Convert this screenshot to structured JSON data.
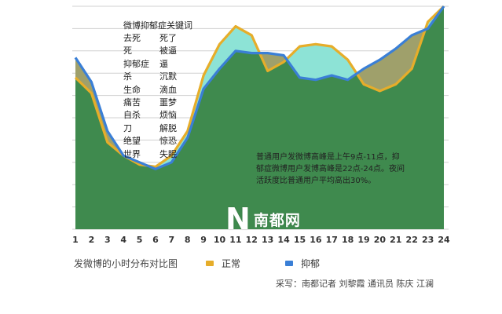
{
  "chart_data": {
    "type": "area",
    "title": "发微博的小时分布对比图",
    "x": [
      1,
      2,
      3,
      4,
      5,
      6,
      7,
      8,
      9,
      10,
      11,
      12,
      13,
      14,
      15,
      16,
      17,
      18,
      19,
      20,
      21,
      22,
      23,
      24
    ],
    "series": [
      {
        "name": "正常",
        "color": "#e6ad2a",
        "values": [
          68,
          61,
          39,
          33,
          29,
          28,
          33,
          44,
          69,
          83,
          91,
          87,
          71,
          75,
          82,
          83,
          82,
          76,
          65,
          62,
          65,
          72,
          93,
          100
        ]
      },
      {
        "name": "抑郁",
        "color": "#3a7fd6",
        "values": [
          77,
          66,
          44,
          33,
          30,
          27,
          30,
          41,
          63,
          72,
          80,
          79,
          79,
          78,
          68,
          67,
          69,
          67,
          72,
          76,
          81,
          87,
          90,
          100
        ]
      }
    ],
    "ylim": [
      0,
      100
    ],
    "grid": true,
    "legend": "bottom"
  },
  "keywords": {
    "title": "微博抑郁症关键词",
    "items": [
      [
        "去死",
        "死了"
      ],
      [
        "死",
        "被逼"
      ],
      [
        "抑郁症",
        "逼"
      ],
      [
        "杀",
        "沉默"
      ],
      [
        "生命",
        "滴血"
      ],
      [
        "痛苦",
        "噩梦"
      ],
      [
        "自杀",
        "烦恼"
      ],
      [
        "刀",
        "解脱"
      ],
      [
        "绝望",
        "惊恐"
      ],
      [
        "世界",
        "失眠"
      ]
    ]
  },
  "note": "普通用户发微博高峰是上午9点-11点，抑郁症微博用户发博高峰是22点-24点。夜间活跃度比普通用户平均高出30%。",
  "legend": {
    "normal": "正常",
    "depressed": "抑郁"
  },
  "credit": "采写：南都记者  刘黎霞  通讯员  陈庆  江澜",
  "logo": {
    "mark": "N",
    "text": "南都网"
  },
  "colors": {
    "normal_line": "#e6ad2a",
    "depressed_line": "#3a7fd6",
    "green_fill": "#3f8a4e",
    "cyan_fill": "#8de3d6",
    "olive_fill": "#9fa06b",
    "grid": "#d0d0d0"
  }
}
